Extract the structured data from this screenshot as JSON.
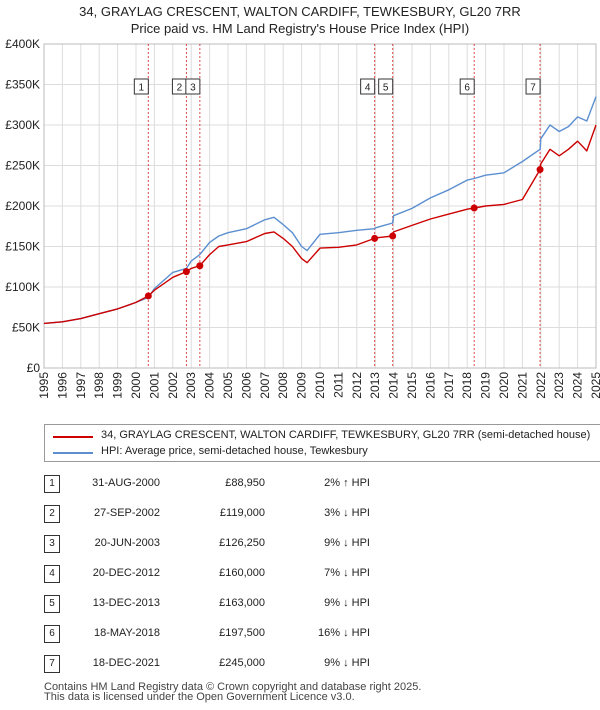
{
  "title_line1": "34, GRAYLAG CRESCENT, WALTON CARDIFF, TEWKESBURY, GL20 7RR",
  "title_line2": "Price paid vs. HM Land Registry's House Price Index (HPI)",
  "colors": {
    "property": "#cc0000",
    "hpi": "#5b8fd0",
    "grid": "#dddddd",
    "marker_line": "#cc0000"
  },
  "chart_data": {
    "type": "line",
    "xlim": [
      1995,
      2025
    ],
    "ylim": [
      0,
      400000
    ],
    "yticks": [
      0,
      50000,
      100000,
      150000,
      200000,
      250000,
      300000,
      350000,
      400000
    ],
    "ytick_labels": [
      "£0",
      "£50K",
      "£100K",
      "£150K",
      "£200K",
      "£250K",
      "£300K",
      "£350K",
      "£400K"
    ],
    "xtick_labels": [
      "1995",
      "1996",
      "1997",
      "1998",
      "1999",
      "2000",
      "2001",
      "2002",
      "2003",
      "2004",
      "2005",
      "2006",
      "2007",
      "2008",
      "2009",
      "2010",
      "2011",
      "2012",
      "2013",
      "2014",
      "2015",
      "2016",
      "2017",
      "2018",
      "2019",
      "2020",
      "2021",
      "2022",
      "2023",
      "2024",
      "2025"
    ],
    "grid": true,
    "series": [
      {
        "name": "34, GRAYLAG CRESCENT, WALTON CARDIFF, TEWKESBURY, GL20 7RR (semi-detached house)",
        "color": "#cc0000",
        "x": [
          1995,
          1996,
          1997,
          1998,
          1999,
          2000,
          2000.67,
          2001,
          2001.5,
          2002,
          2002.74,
          2003,
          2003.47,
          2004,
          2004.5,
          2005,
          2006,
          2007,
          2007.5,
          2008,
          2008.5,
          2009,
          2009.3,
          2010,
          2011,
          2012,
          2012.97,
          2013,
          2013.95,
          2014,
          2015,
          2016,
          2017,
          2018,
          2018.38,
          2019,
          2020,
          2021,
          2021.96,
          2022,
          2022.5,
          2023,
          2023.5,
          2024,
          2024.5,
          2025
        ],
        "y": [
          55000,
          57000,
          61000,
          67000,
          73000,
          81000,
          88950,
          96000,
          104000,
          112000,
          119000,
          123000,
          126250,
          140000,
          150000,
          152000,
          156000,
          166000,
          168000,
          160000,
          150000,
          135000,
          130000,
          148000,
          149000,
          152000,
          160000,
          160500,
          163000,
          168000,
          176000,
          184000,
          190000,
          196000,
          197500,
          200000,
          202000,
          208000,
          245000,
          252000,
          270000,
          262000,
          270000,
          280000,
          268000,
          300000
        ]
      },
      {
        "name": "HPI: Average price, semi-detached house, Tewkesbury",
        "color": "#5b8fd0",
        "x": [
          1995,
          1996,
          1997,
          1998,
          1999,
          2000,
          2000.67,
          2001,
          2001.5,
          2002,
          2002.74,
          2003,
          2003.47,
          2004,
          2004.5,
          2005,
          2006,
          2007,
          2007.5,
          2008,
          2008.5,
          2009,
          2009.3,
          2010,
          2011,
          2012,
          2012.97,
          2013,
          2013.95,
          2014,
          2015,
          2016,
          2017,
          2018,
          2018.38,
          2019,
          2020,
          2021,
          2021.96,
          2022,
          2022.5,
          2023,
          2023.5,
          2024,
          2024.5,
          2025
        ],
        "y": [
          55000,
          57000,
          61000,
          67000,
          73000,
          81000,
          87000,
          98000,
          108000,
          118000,
          123000,
          132000,
          140000,
          155000,
          163000,
          167000,
          172000,
          183000,
          186000,
          177000,
          167000,
          150000,
          145000,
          165000,
          167000,
          170000,
          172000,
          173000,
          179000,
          188000,
          197000,
          210000,
          220000,
          232000,
          234000,
          238000,
          241000,
          255000,
          270000,
          283000,
          300000,
          292000,
          298000,
          310000,
          305000,
          335000
        ]
      }
    ],
    "markers": [
      {
        "label": "1",
        "x": 2000.67,
        "y": 88950
      },
      {
        "label": "2",
        "x": 2002.74,
        "y": 119000
      },
      {
        "label": "3",
        "x": 2003.47,
        "y": 126250
      },
      {
        "label": "4",
        "x": 2012.97,
        "y": 160000
      },
      {
        "label": "5",
        "x": 2013.95,
        "y": 163000
      },
      {
        "label": "6",
        "x": 2018.38,
        "y": 197500
      },
      {
        "label": "7",
        "x": 2021.96,
        "y": 245000
      }
    ]
  },
  "legend": {
    "property_label": "34, GRAYLAG CRESCENT, WALTON CARDIFF, TEWKESBURY, GL20 7RR (semi-detached house)",
    "hpi_label": "HPI: Average price, semi-detached house, Tewkesbury"
  },
  "transactions": [
    {
      "num": "1",
      "date": "31-AUG-2000",
      "price": "£88,950",
      "hpi": "2% ↑ HPI"
    },
    {
      "num": "2",
      "date": "27-SEP-2002",
      "price": "£119,000",
      "hpi": "3% ↓ HPI"
    },
    {
      "num": "3",
      "date": "20-JUN-2003",
      "price": "£126,250",
      "hpi": "9% ↓ HPI"
    },
    {
      "num": "4",
      "date": "20-DEC-2012",
      "price": "£160,000",
      "hpi": "7% ↓ HPI"
    },
    {
      "num": "5",
      "date": "13-DEC-2013",
      "price": "£163,000",
      "hpi": "9% ↓ HPI"
    },
    {
      "num": "6",
      "date": "18-MAY-2018",
      "price": "£197,500",
      "hpi": "16% ↓ HPI"
    },
    {
      "num": "7",
      "date": "18-DEC-2021",
      "price": "£245,000",
      "hpi": "9% ↓ HPI"
    }
  ],
  "footer": {
    "line1": "Contains HM Land Registry data © Crown copyright and database right 2025.",
    "line2": "This data is licensed under the Open Government Licence v3.0."
  }
}
